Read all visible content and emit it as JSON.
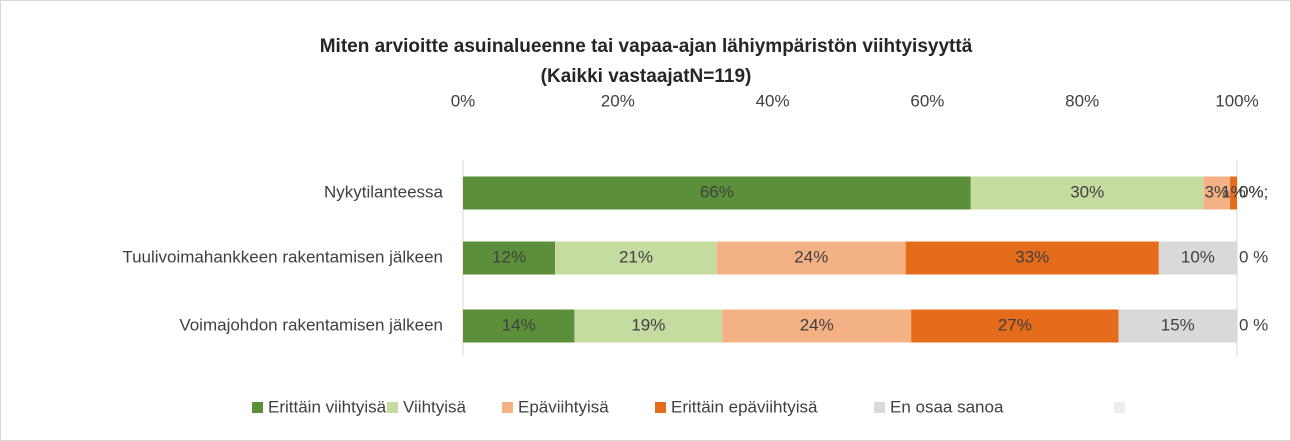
{
  "chart_data": {
    "type": "stacked-bar-horizontal",
    "title": "Miten arvioitte asuinalueenne tai vapaa-ajan lähiympäristön viihtyisyyttä",
    "subtitle": "(Kaikki vastaajatN=119)",
    "categories": [
      "Nykytilanteessa",
      "Tuulivoimahankkeen rakentamisen jälkeen",
      "Voimajohdon rakentamisen jälkeen"
    ],
    "series": [
      {
        "name": "Erittäin viihtyisä",
        "color": "#5b8f3a",
        "values": [
          65.6,
          11.9,
          14.4
        ],
        "value_labels": [
          "66%",
          "12%",
          "14%"
        ]
      },
      {
        "name": "Viihtyisä",
        "color": "#c5dba0",
        "values": [
          30.1,
          20.9,
          19.1
        ],
        "value_labels": [
          "30%",
          "21%",
          "19%"
        ]
      },
      {
        "name": "Epäviihtyisä",
        "color": "#f4b183",
        "values": [
          3.4,
          24.4,
          24.4
        ],
        "value_labels": [
          "3%",
          "24%",
          "24%"
        ]
      },
      {
        "name": "Erittäin epäviihtyisä",
        "color": "#e46c1a",
        "values": [
          0.9,
          32.7,
          26.8
        ],
        "value_labels": [
          "1%",
          "33%",
          "27%"
        ]
      },
      {
        "name": "En osaa sanoa",
        "color": "#d9d9d9",
        "values": [
          0,
          10.1,
          15.3
        ],
        "value_labels": [
          "0%",
          "10%",
          "15%"
        ]
      },
      {
        "color": "#ededed",
        "values": [
          0,
          0,
          0
        ],
        "value_labels": [
          "0%;",
          "0 %",
          "0 %"
        ]
      }
    ],
    "xlim": [
      0,
      100
    ],
    "xticks": [
      {
        "value": 0,
        "label": "0%"
      },
      {
        "value": 20,
        "label": "20%"
      },
      {
        "value": 40,
        "label": "40%"
      },
      {
        "value": 60,
        "label": "60%"
      },
      {
        "value": 80,
        "label": "80%"
      },
      {
        "value": 100,
        "label": "100%"
      }
    ],
    "grid": false,
    "legend": "bottom"
  }
}
